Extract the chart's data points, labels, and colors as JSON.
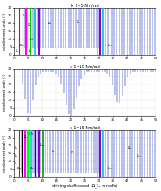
{
  "subplot_titles": [
    "k_1=5 Nm/rad",
    "k_1=10 Nm/rad",
    "k_1=15 Nm/rad"
  ],
  "xlabel": "driving shaft speed (Ω_1, in rad/s)",
  "ylabel": "misalignment angle (°)",
  "xlim": [
    0,
    50
  ],
  "ylim": [
    0,
    30
  ],
  "yticks": [
    0,
    5,
    10,
    15,
    20,
    25,
    30
  ],
  "xticks": [
    0,
    5,
    10,
    15,
    20,
    25,
    30,
    35,
    40,
    45,
    50
  ],
  "dot_color": "#b0b8e8",
  "background_color": "#ffffff",
  "panel1_lines": [
    {
      "x": 2.0,
      "color": "#ff0000",
      "lw": 1.5
    },
    {
      "x": 3.2,
      "color": "#000000",
      "lw": 0.8
    },
    {
      "x": 4.2,
      "color": "#ff00ff",
      "lw": 1.5
    },
    {
      "x": 6.0,
      "color": "#00cc00",
      "lw": 1.5
    },
    {
      "x": 7.5,
      "color": "#00cccc",
      "lw": 1.2
    },
    {
      "x": 9.0,
      "color": "#8800cc",
      "lw": 1.5
    },
    {
      "x": 30.5,
      "color": "#8800cc",
      "lw": 1.5
    },
    {
      "x": 31.5,
      "color": "#00cccc",
      "lw": 1.2
    }
  ],
  "panel3_lines": [
    {
      "x": 2.0,
      "color": "#ff0000",
      "lw": 1.5
    },
    {
      "x": 3.0,
      "color": "#000000",
      "lw": 0.8
    },
    {
      "x": 4.0,
      "color": "#ff00ff",
      "lw": 1.5
    },
    {
      "x": 5.2,
      "color": "#00ff00",
      "lw": 1.5
    },
    {
      "x": 6.3,
      "color": "#00cccc",
      "lw": 1.2
    },
    {
      "x": 7.5,
      "color": "#0000ff",
      "lw": 1.0
    },
    {
      "x": 8.8,
      "color": "#8800cc",
      "lw": 1.5
    },
    {
      "x": 10.2,
      "color": "#00aa00",
      "lw": 1.2
    },
    {
      "x": 30.5,
      "color": "#8800cc",
      "lw": 1.5
    },
    {
      "x": 31.5,
      "color": "#00cccc",
      "lw": 1.2
    }
  ]
}
